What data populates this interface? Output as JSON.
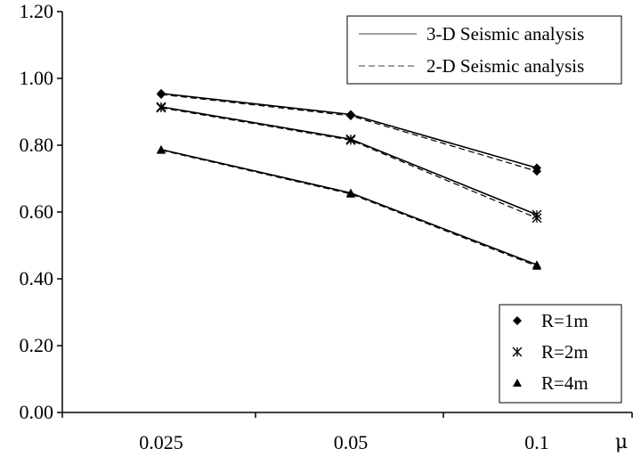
{
  "chart_data": {
    "type": "line",
    "x_categories": [
      "0.025",
      "0.05",
      "0.1"
    ],
    "xlabel": "μ",
    "ylabel": "",
    "ylim": [
      0,
      1.2
    ],
    "yticks": [
      "0.00",
      "0.20",
      "0.40",
      "0.60",
      "0.80",
      "1.00",
      "1.20"
    ],
    "grid": false,
    "line_legend": {
      "position": "top-right",
      "entries": [
        {
          "label": "3-D Seismic analysis",
          "style": "solid"
        },
        {
          "label": "2-D Seismic analysis",
          "style": "dashed"
        }
      ]
    },
    "marker_legend": {
      "position": "bottom-right",
      "entries": [
        {
          "label": "R=1m",
          "marker": "diamond"
        },
        {
          "label": "R=2m",
          "marker": "star"
        },
        {
          "label": "R=4m",
          "marker": "triangle"
        }
      ]
    },
    "series": [
      {
        "name": "R=1m",
        "analysis": "3-D Seismic analysis",
        "marker": "diamond",
        "style": "solid",
        "values": [
          0.955,
          0.892,
          0.732
        ]
      },
      {
        "name": "R=1m",
        "analysis": "2-D Seismic analysis",
        "marker": "diamond",
        "style": "dashed",
        "values": [
          0.952,
          0.888,
          0.722
        ]
      },
      {
        "name": "R=2m",
        "analysis": "3-D Seismic analysis",
        "marker": "star",
        "style": "solid",
        "values": [
          0.915,
          0.818,
          0.592
        ]
      },
      {
        "name": "R=2m",
        "analysis": "2-D Seismic analysis",
        "marker": "star",
        "style": "dashed",
        "values": [
          0.912,
          0.815,
          0.582
        ]
      },
      {
        "name": "R=4m",
        "analysis": "3-D Seismic analysis",
        "marker": "triangle",
        "style": "solid",
        "values": [
          0.787,
          0.657,
          0.442
        ]
      },
      {
        "name": "R=4m",
        "analysis": "2-D Seismic analysis",
        "marker": "triangle",
        "style": "dashed",
        "values": [
          0.785,
          0.654,
          0.438
        ]
      }
    ]
  }
}
